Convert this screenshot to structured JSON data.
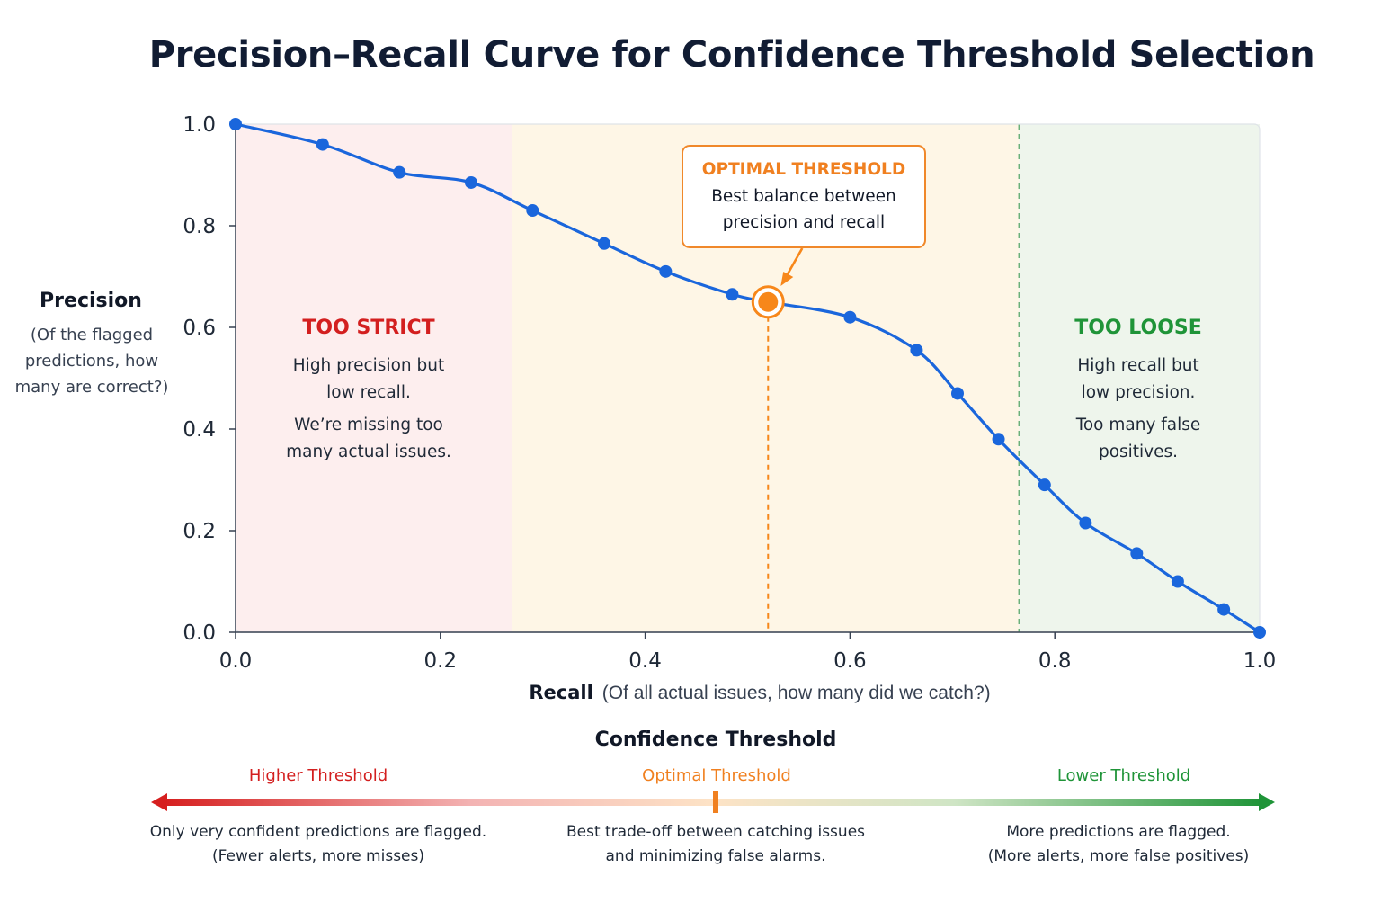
{
  "chart_data": {
    "type": "line",
    "title": "Precision–Recall Curve for Confidence Threshold Selection",
    "xlabel": "Recall",
    "xlabel_note": "(Of all actual issues, how many did we catch?)",
    "ylabel": "Precision",
    "ylabel_note": [
      "(Of the flagged",
      "predictions, how",
      "many are correct?)"
    ],
    "xlim": [
      0,
      1
    ],
    "ylim": [
      0,
      1
    ],
    "x_ticks": [
      "0.0",
      "0.2",
      "0.4",
      "0.6",
      "0.8",
      "1.0"
    ],
    "y_ticks": [
      "0.0",
      "0.2",
      "0.4",
      "0.6",
      "0.8",
      "1.0"
    ],
    "grid": false,
    "series": [
      {
        "x": [
          0.0,
          0.085,
          0.16,
          0.23,
          0.29,
          0.36,
          0.42,
          0.485,
          0.6,
          0.665,
          0.705,
          0.745,
          0.79,
          0.83,
          0.88,
          0.92,
          0.965,
          1.0
        ],
        "y": [
          1.0,
          0.96,
          0.905,
          0.885,
          0.83,
          0.765,
          0.71,
          0.665,
          0.62,
          0.555,
          0.47,
          0.38,
          0.29,
          0.215,
          0.155,
          0.1,
          0.045,
          0.0
        ]
      }
    ],
    "optimal_point": {
      "x": 0.52,
      "y": 0.65
    },
    "regions": [
      {
        "from": 0.0,
        "to": 0.27,
        "color": "#fdeeee",
        "line_color": "#e04b4b"
      },
      {
        "from": 0.27,
        "to": 0.765,
        "color": "#fef6e6",
        "line_color": ""
      },
      {
        "from": 0.765,
        "to": 1.0,
        "color": "#eef5ec",
        "line_color": "#6bb07a"
      }
    ],
    "colors": {
      "line": "#1a66dc",
      "optimal": "#f7871a",
      "strict": "#d31f1f",
      "loose": "#1f9438",
      "axis": "#374151"
    }
  },
  "zones": {
    "strict": {
      "title": "TOO STRICT",
      "lines": [
        "High precision but",
        "low recall."
      ],
      "lines2": [
        "We’re missing too",
        "many actual issues."
      ]
    },
    "loose": {
      "title": "TOO LOOSE",
      "lines": [
        "High recall but",
        "low precision."
      ],
      "lines2": [
        "Too many false",
        "positives."
      ]
    }
  },
  "callout": {
    "title": "OPTIMAL THRESHOLD",
    "line1": "Best balance between",
    "line2": "precision and recall"
  },
  "threshold_scale": {
    "title": "Confidence Threshold",
    "higher": {
      "label": "Higher Threshold",
      "desc1": "Only very confident predictions are flagged.",
      "desc2": "(Fewer alerts, more misses)"
    },
    "optimal": {
      "label": "Optimal Threshold",
      "desc1": "Best trade-off between catching issues",
      "desc2": "and minimizing false alarms."
    },
    "lower": {
      "label": "Lower Threshold",
      "desc1": "More predictions are flagged.",
      "desc2": "(More alerts, more false positives)"
    }
  }
}
